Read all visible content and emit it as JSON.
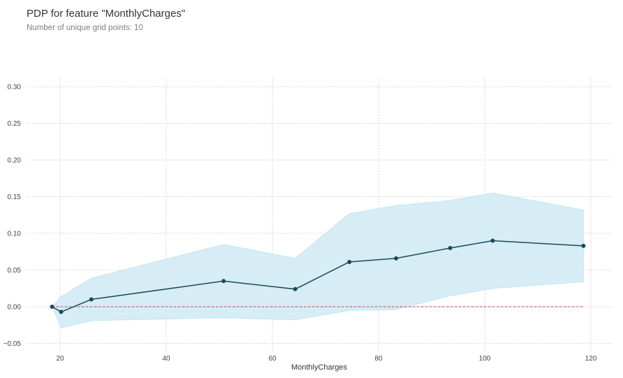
{
  "header": {
    "title": "PDP for feature \"MonthlyCharges\"",
    "subtitle": "Number of unique grid points: 10"
  },
  "colors": {
    "line": "#1a4a5a",
    "band": "#d6edf5",
    "band_edge": "#bfe3ef",
    "baseline": "#c0504d",
    "grid": "#cccccc"
  },
  "chart_data": {
    "type": "line",
    "title": "PDP for feature \"MonthlyCharges\"",
    "subtitle": "Number of unique grid points: 10",
    "xlabel": "MonthlyCharges",
    "ylabel": "",
    "xlim": [
      14,
      122
    ],
    "ylim": [
      -0.055,
      0.31
    ],
    "x_ticks": [
      20,
      40,
      60,
      80,
      100,
      120
    ],
    "y_ticks": [
      -0.05,
      0.0,
      0.05,
      0.1,
      0.15,
      0.2,
      0.25,
      0.3
    ],
    "y_tick_labels": [
      "−0.05",
      "0.00",
      "0.05",
      "0.10",
      "0.15",
      "0.20",
      "0.25",
      "0.30"
    ],
    "grid": true,
    "series": [
      {
        "x": [
          18.5,
          20.2,
          25.9,
          50.8,
          64.3,
          74.5,
          83.3,
          93.5,
          101.5,
          118.6
        ],
        "y": [
          0.0,
          -0.007,
          0.01,
          0.035,
          0.024,
          0.061,
          0.066,
          0.08,
          0.09,
          0.083
        ],
        "lower": [
          0.0,
          -0.029,
          -0.019,
          -0.015,
          -0.018,
          -0.005,
          -0.004,
          0.015,
          0.025,
          0.034
        ],
        "upper": [
          0.0,
          0.014,
          0.039,
          0.085,
          0.066,
          0.127,
          0.138,
          0.145,
          0.155,
          0.132
        ]
      }
    ],
    "baseline": 0.0
  }
}
